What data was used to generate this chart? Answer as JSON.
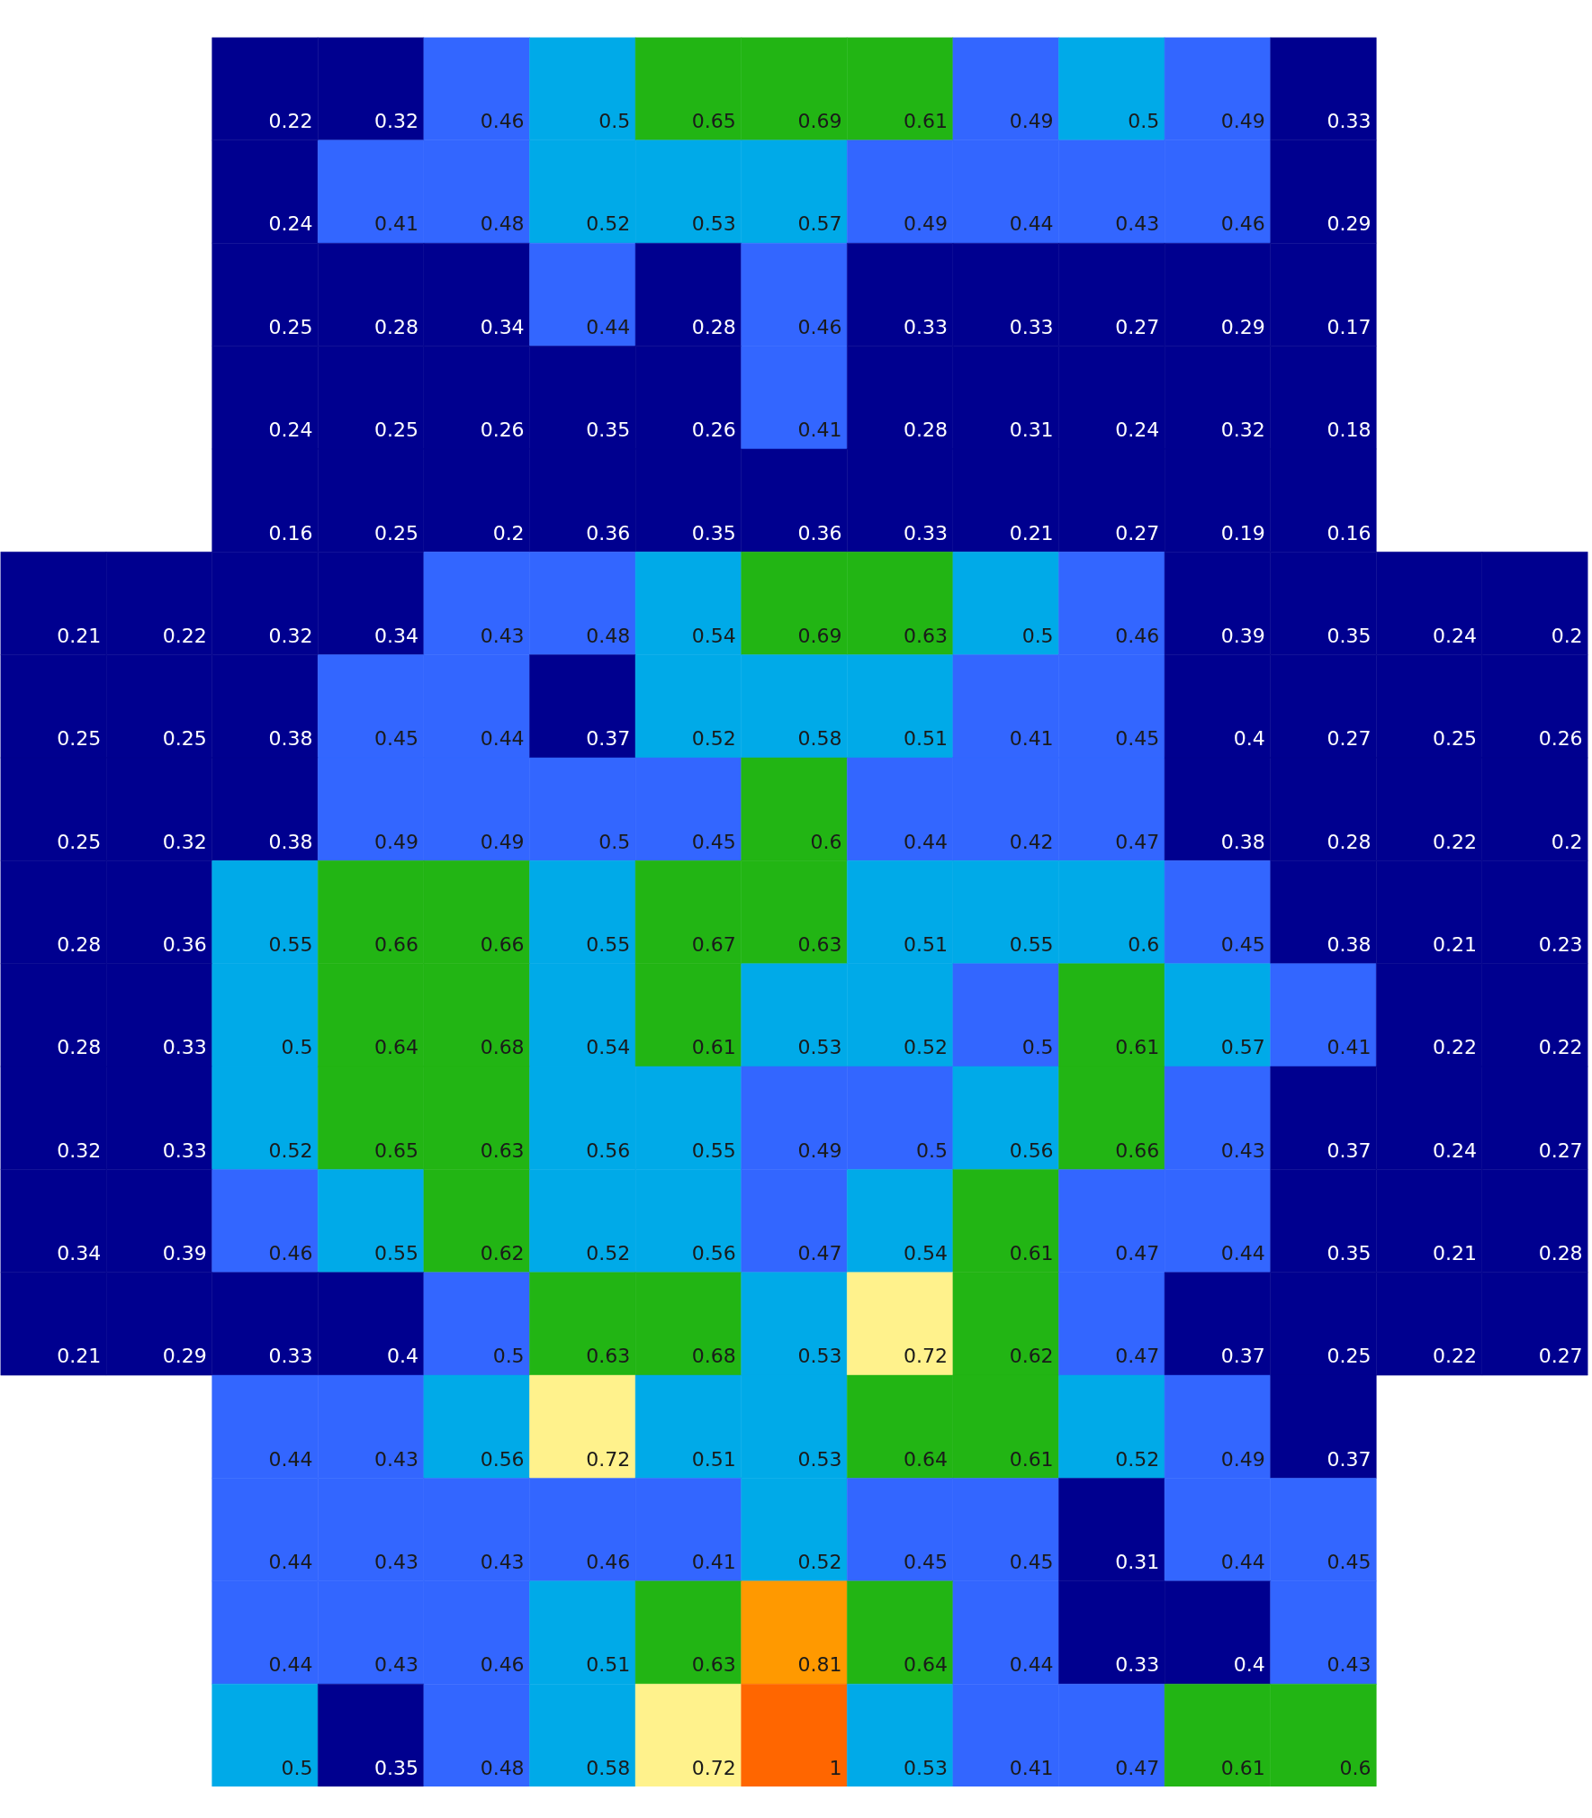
{
  "chart_data": {
    "type": "heatmap",
    "data_labels": true,
    "categories": [
      null,
      null,
      null,
      null,
      null,
      null,
      null,
      null,
      null,
      null,
      null,
      null,
      null,
      null,
      null
    ],
    "y_categories": [
      null,
      null,
      null,
      null,
      null,
      null,
      null,
      null,
      null,
      null,
      null,
      null,
      null,
      null,
      null,
      null,
      null
    ],
    "cells": [
      [
        null,
        null,
        0.22,
        0.32,
        0.46,
        0.5,
        0.65,
        0.69,
        0.61,
        0.49,
        0.5,
        0.49,
        0.33,
        null,
        null
      ],
      [
        null,
        null,
        0.24,
        0.41,
        0.48,
        0.52,
        0.53,
        0.57,
        0.49,
        0.44,
        0.43,
        0.46,
        0.29,
        null,
        null
      ],
      [
        null,
        null,
        0.25,
        0.28,
        0.34,
        0.44,
        0.28,
        0.46,
        0.33,
        0.33,
        0.27,
        0.29,
        0.17,
        null,
        null
      ],
      [
        null,
        null,
        0.24,
        0.25,
        0.26,
        0.35,
        0.26,
        0.41,
        0.28,
        0.31,
        0.24,
        0.32,
        0.18,
        null,
        null
      ],
      [
        null,
        null,
        0.16,
        0.25,
        0.2,
        0.36,
        0.35,
        0.36,
        0.33,
        0.21,
        0.27,
        0.19,
        0.16,
        null,
        null
      ],
      [
        0.21,
        0.22,
        0.32,
        0.34,
        0.43,
        0.48,
        0.54,
        0.69,
        0.63,
        0.5,
        0.46,
        0.39,
        0.35,
        0.24,
        0.2
      ],
      [
        0.25,
        0.25,
        0.38,
        0.45,
        0.44,
        0.37,
        0.52,
        0.58,
        0.51,
        0.41,
        0.45,
        0.4,
        0.27,
        0.25,
        0.26
      ],
      [
        0.25,
        0.32,
        0.38,
        0.49,
        0.49,
        0.5,
        0.45,
        0.6,
        0.44,
        0.42,
        0.47,
        0.38,
        0.28,
        0.22,
        0.2
      ],
      [
        0.28,
        0.36,
        0.55,
        0.66,
        0.66,
        0.55,
        0.67,
        0.63,
        0.51,
        0.55,
        0.6,
        0.45,
        0.38,
        0.21,
        0.23
      ],
      [
        0.28,
        0.33,
        0.5,
        0.64,
        0.68,
        0.54,
        0.61,
        0.53,
        0.52,
        0.5,
        0.61,
        0.57,
        0.41,
        0.22,
        0.22
      ],
      [
        0.32,
        0.33,
        0.52,
        0.65,
        0.63,
        0.56,
        0.55,
        0.49,
        0.5,
        0.56,
        0.66,
        0.43,
        0.37,
        0.24,
        0.27
      ],
      [
        0.34,
        0.39,
        0.46,
        0.55,
        0.62,
        0.52,
        0.56,
        0.47,
        0.54,
        0.61,
        0.47,
        0.44,
        0.35,
        0.21,
        0.28
      ],
      [
        0.21,
        0.29,
        0.33,
        0.4,
        0.5,
        0.63,
        0.68,
        0.53,
        0.72,
        0.62,
        0.47,
        0.37,
        0.25,
        0.22,
        0.27
      ],
      [
        null,
        null,
        0.44,
        0.43,
        0.56,
        0.72,
        0.51,
        0.53,
        0.64,
        0.61,
        0.52,
        0.49,
        0.37,
        null,
        null
      ],
      [
        null,
        null,
        0.44,
        0.43,
        0.43,
        0.46,
        0.41,
        0.52,
        0.45,
        0.45,
        0.31,
        0.44,
        0.45,
        null,
        null
      ],
      [
        null,
        null,
        0.44,
        0.43,
        0.46,
        0.51,
        0.63,
        0.81,
        0.64,
        0.44,
        0.33,
        0.4,
        0.43,
        null,
        null
      ],
      [
        null,
        null,
        0.5,
        0.35,
        0.48,
        0.58,
        0.72,
        1,
        0.53,
        0.41,
        0.47,
        0.61,
        0.6,
        null,
        null
      ]
    ],
    "colors": [
      [
        null,
        null,
        "#00008f",
        "#00008f",
        "#3366ff",
        "#00aae8",
        "#22b514",
        "#22b514",
        "#22b514",
        "#3366ff",
        "#00aae8",
        "#3366ff",
        "#00008f",
        null,
        null
      ],
      [
        null,
        null,
        "#00008f",
        "#3366ff",
        "#3366ff",
        "#00aae8",
        "#00aae8",
        "#00aae8",
        "#3366ff",
        "#3366ff",
        "#3366ff",
        "#3366ff",
        "#00008f",
        null,
        null
      ],
      [
        null,
        null,
        "#00008f",
        "#00008f",
        "#00008f",
        "#3366ff",
        "#00008f",
        "#3366ff",
        "#00008f",
        "#00008f",
        "#00008f",
        "#00008f",
        "#00008f",
        null,
        null
      ],
      [
        null,
        null,
        "#00008f",
        "#00008f",
        "#00008f",
        "#00008f",
        "#00008f",
        "#3366ff",
        "#00008f",
        "#00008f",
        "#00008f",
        "#00008f",
        "#00008f",
        null,
        null
      ],
      [
        null,
        null,
        "#00008f",
        "#00008f",
        "#00008f",
        "#00008f",
        "#00008f",
        "#00008f",
        "#00008f",
        "#00008f",
        "#00008f",
        "#00008f",
        "#00008f",
        null,
        null
      ],
      [
        "#00008f",
        "#00008f",
        "#00008f",
        "#00008f",
        "#3366ff",
        "#3366ff",
        "#00aae8",
        "#22b514",
        "#22b514",
        "#00aae8",
        "#3366ff",
        "#00008f",
        "#00008f",
        "#00008f",
        "#00008f"
      ],
      [
        "#00008f",
        "#00008f",
        "#00008f",
        "#3366ff",
        "#3366ff",
        "#00008f",
        "#00aae8",
        "#00aae8",
        "#00aae8",
        "#3366ff",
        "#3366ff",
        "#00008f",
        "#00008f",
        "#00008f",
        "#00008f"
      ],
      [
        "#00008f",
        "#00008f",
        "#00008f",
        "#3366ff",
        "#3366ff",
        "#3366ff",
        "#3366ff",
        "#22b514",
        "#3366ff",
        "#3366ff",
        "#3366ff",
        "#00008f",
        "#00008f",
        "#00008f",
        "#00008f"
      ],
      [
        "#00008f",
        "#00008f",
        "#00aae8",
        "#22b514",
        "#22b514",
        "#00aae8",
        "#22b514",
        "#22b514",
        "#00aae8",
        "#00aae8",
        "#00aae8",
        "#3366ff",
        "#00008f",
        "#00008f",
        "#00008f"
      ],
      [
        "#00008f",
        "#00008f",
        "#00aae8",
        "#22b514",
        "#22b514",
        "#00aae8",
        "#22b514",
        "#00aae8",
        "#00aae8",
        "#3366ff",
        "#22b514",
        "#00aae8",
        "#3366ff",
        "#00008f",
        "#00008f"
      ],
      [
        "#00008f",
        "#00008f",
        "#00aae8",
        "#22b514",
        "#22b514",
        "#00aae8",
        "#00aae8",
        "#3366ff",
        "#3366ff",
        "#00aae8",
        "#22b514",
        "#3366ff",
        "#00008f",
        "#00008f",
        "#00008f"
      ],
      [
        "#00008f",
        "#00008f",
        "#3366ff",
        "#00aae8",
        "#22b514",
        "#00aae8",
        "#00aae8",
        "#3366ff",
        "#00aae8",
        "#22b514",
        "#3366ff",
        "#3366ff",
        "#00008f",
        "#00008f",
        "#00008f"
      ],
      [
        "#00008f",
        "#00008f",
        "#00008f",
        "#00008f",
        "#3366ff",
        "#22b514",
        "#22b514",
        "#00aae8",
        "#fff28c",
        "#22b514",
        "#3366ff",
        "#00008f",
        "#00008f",
        "#00008f",
        "#00008f"
      ],
      [
        null,
        null,
        "#3366ff",
        "#3366ff",
        "#00aae8",
        "#fff28c",
        "#00aae8",
        "#00aae8",
        "#22b514",
        "#22b514",
        "#00aae8",
        "#3366ff",
        "#00008f",
        null,
        null
      ],
      [
        null,
        null,
        "#3366ff",
        "#3366ff",
        "#3366ff",
        "#3366ff",
        "#3366ff",
        "#00aae8",
        "#3366ff",
        "#3366ff",
        "#00008f",
        "#3366ff",
        "#3366ff",
        null,
        null
      ],
      [
        null,
        null,
        "#3366ff",
        "#3366ff",
        "#3366ff",
        "#00aae8",
        "#22b514",
        "#ff9900",
        "#22b514",
        "#3366ff",
        "#00008f",
        "#00008f",
        "#3366ff",
        null,
        null
      ],
      [
        null,
        null,
        "#00aae8",
        "#00008f",
        "#3366ff",
        "#00aae8",
        "#fff28c",
        "#ff6600",
        "#00aae8",
        "#3366ff",
        "#3366ff",
        "#22b514",
        "#22b514",
        null,
        null
      ]
    ]
  }
}
